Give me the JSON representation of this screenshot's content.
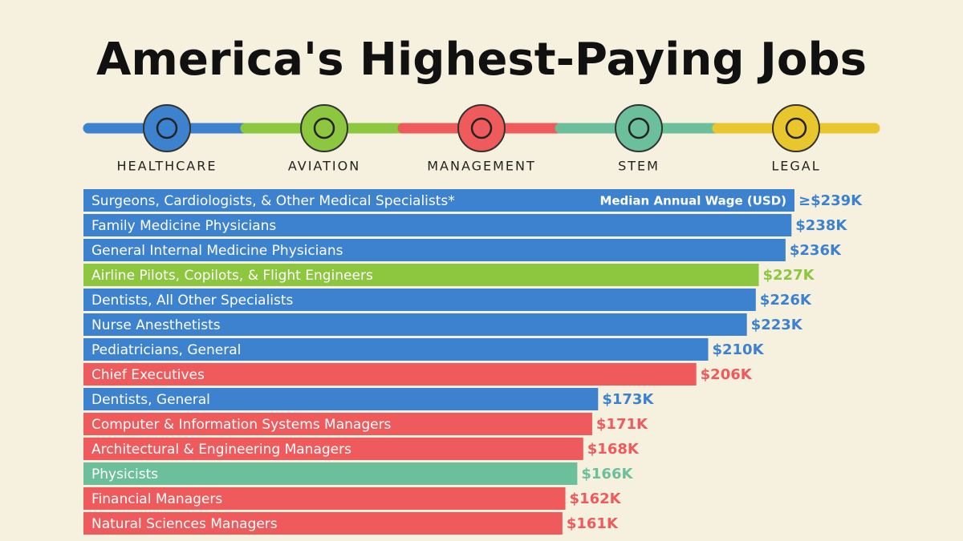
{
  "chart_data": {
    "type": "bar",
    "orientation": "horizontal",
    "title": "America's Highest-Paying Jobs",
    "annotation": "Median Annual Wage (USD)",
    "legend": [
      {
        "name": "HEALTHCARE",
        "color": "#3d82cf"
      },
      {
        "name": "AVIATION",
        "color": "#8dc63f"
      },
      {
        "name": "MANAGEMENT",
        "color": "#ef5a5c"
      },
      {
        "name": "STEM",
        "color": "#6cbf9b"
      },
      {
        "name": "LEGAL",
        "color": "#e9c62d"
      }
    ],
    "categories": [
      "Surgeons, Cardiologists, & Other Medical Specialists*",
      "Family Medicine Physicians",
      "General Internal Medicine Physicians",
      "Airline Pilots, Copilots, & Flight Engineers",
      "Dentists, All Other Specialists",
      "Nurse Anesthetists",
      "Pediatricians, General",
      "Chief Executives",
      "Dentists, General",
      "Computer & Information Systems Managers",
      "Architectural & Engineering Managers",
      "Physicists",
      "Financial Managers",
      "Natural Sciences Managers"
    ],
    "values": [
      239,
      238,
      236,
      227,
      226,
      223,
      210,
      206,
      173,
      171,
      168,
      166,
      162,
      161
    ],
    "value_labels": [
      "≥$239K",
      "$238K",
      "$236K",
      "$227K",
      "$226K",
      "$223K",
      "$210K",
      "$206K",
      "$173K",
      "$171K",
      "$168K",
      "$166K",
      "$162K",
      "$161K"
    ],
    "colors": [
      "#3d82cf",
      "#3d82cf",
      "#3d82cf",
      "#8dc63f",
      "#3d82cf",
      "#3d82cf",
      "#3d82cf",
      "#ef5a5c",
      "#3d82cf",
      "#ef5a5c",
      "#ef5a5c",
      "#6cbf9b",
      "#ef5a5c",
      "#ef5a5c"
    ]
  }
}
